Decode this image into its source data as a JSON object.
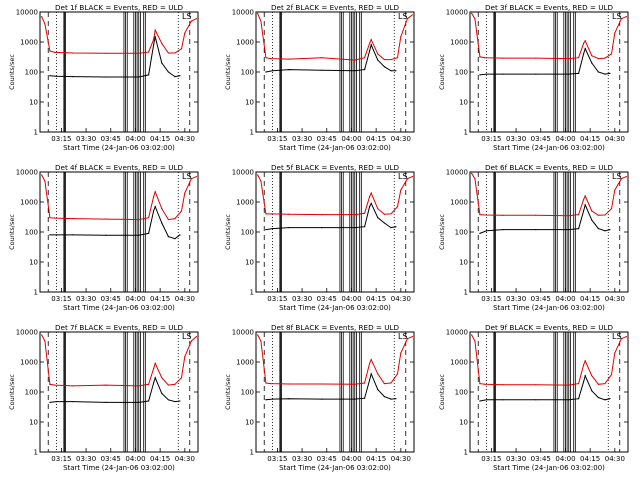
{
  "chart_data": {
    "type": "line",
    "layout_grid": {
      "rows": 3,
      "cols": 3
    },
    "ylabel": "Counts/sec",
    "xlabel": "Start Time (24-Jan-06 03:02:00)",
    "x_ticks": [
      "03:15",
      "03:30",
      "03:45",
      "04:00",
      "04:15",
      "04:30"
    ],
    "x_tick_minutes": [
      13,
      28,
      43,
      58,
      73,
      88
    ],
    "xlim_minutes": [
      0,
      96
    ],
    "y_scale": "log",
    "ylim": [
      1,
      10000
    ],
    "y_ticks": [
      "1",
      "10",
      "100",
      "1000",
      "10000"
    ],
    "y_tick_values": [
      1,
      10,
      100,
      1000,
      10000
    ],
    "colors": {
      "events": "#000000",
      "uld": "#e00000"
    },
    "event_markers_minutes": {
      "dashed": [
        5,
        91
      ],
      "dotted": [
        10,
        84
      ],
      "solid": [
        14.5,
        15,
        15.5,
        51,
        52,
        53,
        57,
        58,
        59,
        60,
        61,
        63,
        64
      ]
    },
    "panels": [
      {
        "title": "Det 1f BLACK = Events, RED = ULD",
        "corner_glyph": "LS",
        "uld": {
          "x": [
            1,
            3,
            6,
            9,
            20,
            40,
            60,
            66,
            69,
            70,
            74,
            78,
            82,
            86,
            88,
            92,
            95
          ],
          "y": [
            7000,
            4000,
            500,
            450,
            430,
            420,
            420,
            460,
            1200,
            2500,
            900,
            430,
            430,
            600,
            2000,
            5000,
            6000
          ]
        },
        "events": {
          "x": [
            6,
            10,
            20,
            40,
            60,
            66,
            69,
            70,
            74,
            78,
            82,
            85
          ],
          "y": [
            75,
            72,
            70,
            68,
            68,
            80,
            800,
            1500,
            200,
            100,
            70,
            75
          ]
        }
      },
      {
        "title": "Det 2f BLACK = Events, RED = ULD",
        "corner_glyph": "LS",
        "uld": {
          "x": [
            1,
            3,
            6,
            9,
            20,
            40,
            60,
            66,
            69,
            70,
            74,
            78,
            82,
            86,
            88,
            92,
            95
          ],
          "y": [
            9000,
            5000,
            300,
            280,
            270,
            300,
            250,
            300,
            900,
            1200,
            400,
            260,
            260,
            300,
            1500,
            6000,
            8000
          ]
        },
        "events": {
          "x": [
            6,
            10,
            20,
            40,
            60,
            66,
            69,
            70,
            74,
            78,
            82,
            85
          ],
          "y": [
            100,
            110,
            120,
            115,
            110,
            120,
            500,
            800,
            250,
            150,
            110,
            110
          ]
        }
      },
      {
        "title": "Det 3f BLACK = Events, RED = ULD",
        "corner_glyph": "LS",
        "uld": {
          "x": [
            1,
            3,
            6,
            9,
            20,
            40,
            60,
            66,
            69,
            70,
            74,
            78,
            82,
            86,
            88,
            92,
            95
          ],
          "y": [
            9000,
            6000,
            320,
            300,
            290,
            290,
            280,
            300,
            900,
            1100,
            350,
            280,
            290,
            400,
            2000,
            6000,
            7000
          ]
        },
        "events": {
          "x": [
            6,
            10,
            20,
            40,
            60,
            66,
            69,
            70,
            74,
            78,
            82,
            85
          ],
          "y": [
            80,
            85,
            85,
            85,
            85,
            90,
            400,
            600,
            200,
            100,
            85,
            90
          ]
        }
      },
      {
        "title": "Det 4f BLACK = Events, RED = ULD",
        "corner_glyph": "LS",
        "uld": {
          "x": [
            1,
            3,
            6,
            9,
            20,
            40,
            60,
            66,
            69,
            70,
            74,
            78,
            82,
            86,
            88,
            92,
            95
          ],
          "y": [
            8000,
            5000,
            300,
            290,
            280,
            270,
            260,
            300,
            1500,
            2200,
            600,
            260,
            280,
            500,
            2000,
            6000,
            7000
          ]
        },
        "events": {
          "x": [
            6,
            10,
            20,
            40,
            60,
            66,
            69,
            70,
            74,
            78,
            82,
            85
          ],
          "y": [
            80,
            80,
            80,
            78,
            78,
            90,
            500,
            700,
            200,
            70,
            60,
            80
          ]
        }
      },
      {
        "title": "Det 5f BLACK = Events, RED = ULD",
        "corner_glyph": "LS",
        "uld": {
          "x": [
            1,
            3,
            6,
            9,
            20,
            40,
            60,
            66,
            69,
            70,
            74,
            78,
            82,
            86,
            88,
            92,
            95
          ],
          "y": [
            8000,
            5000,
            400,
            400,
            390,
            380,
            380,
            420,
            1500,
            2000,
            600,
            390,
            400,
            700,
            2500,
            6000,
            7000
          ]
        },
        "events": {
          "x": [
            6,
            10,
            20,
            40,
            60,
            66,
            69,
            70,
            74,
            78,
            82,
            85
          ],
          "y": [
            120,
            130,
            140,
            140,
            140,
            150,
            700,
            900,
            300,
            200,
            140,
            150
          ]
        }
      },
      {
        "title": "Det 6f BLACK = Events, RED = ULD",
        "corner_glyph": "LS",
        "uld": {
          "x": [
            1,
            3,
            6,
            9,
            20,
            40,
            60,
            66,
            69,
            70,
            74,
            78,
            82,
            86,
            88,
            92,
            95
          ],
          "y": [
            9000,
            6000,
            380,
            370,
            360,
            360,
            350,
            380,
            1200,
            1600,
            500,
            360,
            370,
            600,
            2500,
            6000,
            7000
          ]
        },
        "events": {
          "x": [
            6,
            10,
            20,
            40,
            60,
            66,
            69,
            70,
            74,
            78,
            82,
            85
          ],
          "y": [
            90,
            110,
            120,
            120,
            120,
            130,
            500,
            800,
            250,
            130,
            110,
            120
          ]
        }
      },
      {
        "title": "Det 7f BLACK = Events, RED = ULD",
        "corner_glyph": "LS",
        "uld": {
          "x": [
            1,
            3,
            6,
            9,
            20,
            40,
            60,
            66,
            69,
            70,
            74,
            78,
            82,
            86,
            88,
            92,
            95
          ],
          "y": [
            8000,
            5000,
            180,
            170,
            160,
            170,
            160,
            180,
            600,
            900,
            300,
            170,
            180,
            300,
            1500,
            5000,
            7000
          ]
        },
        "events": {
          "x": [
            6,
            10,
            20,
            40,
            60,
            66,
            69,
            70,
            74,
            78,
            82,
            85
          ],
          "y": [
            45,
            48,
            48,
            45,
            45,
            50,
            200,
            300,
            90,
            55,
            48,
            50
          ]
        }
      },
      {
        "title": "Det 8f BLACK = Events, RED = ULD",
        "corner_glyph": "LS",
        "uld": {
          "x": [
            1,
            3,
            6,
            9,
            20,
            40,
            60,
            66,
            69,
            70,
            74,
            78,
            82,
            86,
            88,
            92,
            95
          ],
          "y": [
            8000,
            5000,
            200,
            190,
            185,
            185,
            180,
            200,
            900,
            1200,
            400,
            190,
            200,
            400,
            2000,
            6000,
            7000
          ]
        },
        "events": {
          "x": [
            6,
            10,
            20,
            40,
            60,
            66,
            69,
            70,
            74,
            78,
            82,
            85
          ],
          "y": [
            55,
            58,
            60,
            58,
            58,
            62,
            250,
            400,
            120,
            70,
            58,
            60
          ]
        }
      },
      {
        "title": "Det 9f BLACK = Events, RED = ULD",
        "corner_glyph": "LS",
        "uld": {
          "x": [
            1,
            3,
            6,
            9,
            20,
            40,
            60,
            66,
            69,
            70,
            74,
            78,
            82,
            86,
            88,
            92,
            95
          ],
          "y": [
            8000,
            5000,
            190,
            180,
            175,
            175,
            170,
            190,
            800,
            1100,
            350,
            180,
            190,
            380,
            2000,
            6000,
            7000
          ]
        },
        "events": {
          "x": [
            6,
            10,
            20,
            40,
            60,
            66,
            69,
            70,
            74,
            78,
            82,
            85
          ],
          "y": [
            50,
            55,
            55,
            55,
            55,
            60,
            220,
            350,
            110,
            65,
            55,
            60
          ]
        }
      }
    ]
  }
}
